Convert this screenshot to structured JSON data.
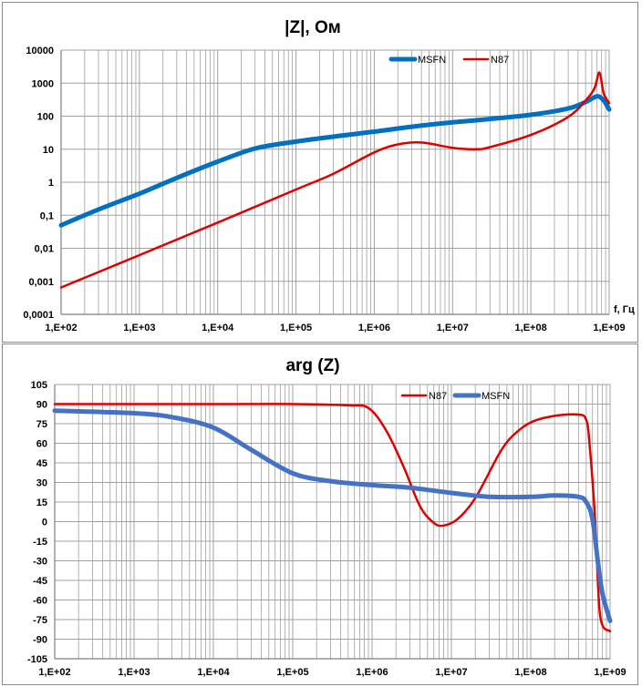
{
  "colors": {
    "msfn": "#0070C0",
    "msfn_phase": "#4472C4",
    "n87": "#E00000",
    "grid": "#A0A0A0",
    "axis": "#7F7F7F"
  },
  "chart_data": [
    {
      "type": "line",
      "title": "|Z|, Ом",
      "xlabel": "f, Гц",
      "ylabel": "",
      "x_scale": "log",
      "y_scale": "log",
      "xlim": [
        100,
        1000000000
      ],
      "ylim": [
        0.0001,
        10000
      ],
      "grid": true,
      "legend": "top-right",
      "x_ticks": [
        "1,E+02",
        "1,E+03",
        "1,E+04",
        "1,E+05",
        "1,E+06",
        "1,E+07",
        "1,E+08",
        "1,E+09"
      ],
      "y_ticks": [
        "0,0001",
        "0,001",
        "0,01",
        "0,1",
        "1",
        "10",
        "100",
        "1000",
        "10000"
      ],
      "series": [
        {
          "name": "MSFN",
          "x": [
            100,
            300,
            1000,
            3000,
            10000,
            30000,
            100000,
            300000,
            1000000,
            3000000,
            10000000,
            30000000,
            100000000,
            300000000,
            500000000,
            700000000,
            850000000,
            1000000000
          ],
          "y": [
            0.05,
            0.15,
            0.45,
            1.35,
            4.2,
            10.5,
            17,
            24,
            34,
            48,
            65,
            82,
            110,
            170,
            270,
            400,
            300,
            160
          ]
        },
        {
          "name": "N87",
          "x": [
            100,
            1000,
            10000,
            100000,
            300000,
            1000000,
            2000000,
            4000000,
            10000000,
            20000000,
            30000000,
            100000000,
            300000000,
            500000000,
            650000000,
            750000000,
            850000000,
            1000000000
          ],
          "y": [
            0.00065,
            0.0062,
            0.06,
            0.6,
            1.8,
            8,
            14,
            16,
            11,
            10,
            11.5,
            27,
            95,
            300,
            700,
            2100,
            500,
            250
          ]
        }
      ]
    },
    {
      "type": "line",
      "title": "arg (Z)",
      "xlabel": "",
      "ylabel": "",
      "x_scale": "log",
      "xlim": [
        100,
        1000000000
      ],
      "ylim": [
        -105,
        105
      ],
      "grid": true,
      "legend": "top-right",
      "x_ticks": [
        "1,E+02",
        "1,E+03",
        "1,E+04",
        "1,E+05",
        "1,E+06",
        "1,E+07",
        "1,E+08",
        "1,E+09"
      ],
      "y_ticks": [
        "105",
        "90",
        "75",
        "60",
        "45",
        "30",
        "15",
        "0",
        "-15",
        "-30",
        "-45",
        "-60",
        "-75",
        "-90",
        "-105"
      ],
      "series": [
        {
          "name": "N87",
          "x": [
            100,
            10000,
            100000,
            500000,
            900000,
            1500000,
            2500000,
            4000000,
            6000000,
            8000000,
            12000000,
            20000000,
            40000000,
            60000000,
            100000000,
            200000000,
            400000000,
            500000000,
            550000000,
            650000000,
            750000000,
            1000000000
          ],
          "y": [
            90,
            90,
            90,
            89,
            87,
            70,
            42,
            12,
            -1,
            -3,
            2,
            18,
            52,
            66,
            76,
            81,
            82,
            78,
            60,
            0,
            -72,
            -84
          ]
        },
        {
          "name": "MSFN",
          "x": [
            100,
            1000,
            3000,
            10000,
            30000,
            100000,
            300000,
            1000000,
            3000000,
            10000000,
            30000000,
            100000000,
            200000000,
            400000000,
            500000000,
            600000000,
            700000000,
            800000000,
            1000000000
          ],
          "y": [
            85,
            83,
            80,
            72,
            55,
            37,
            31,
            28,
            26,
            22,
            19,
            19,
            20,
            19,
            15,
            2,
            -30,
            -55,
            -76
          ]
        }
      ]
    }
  ]
}
